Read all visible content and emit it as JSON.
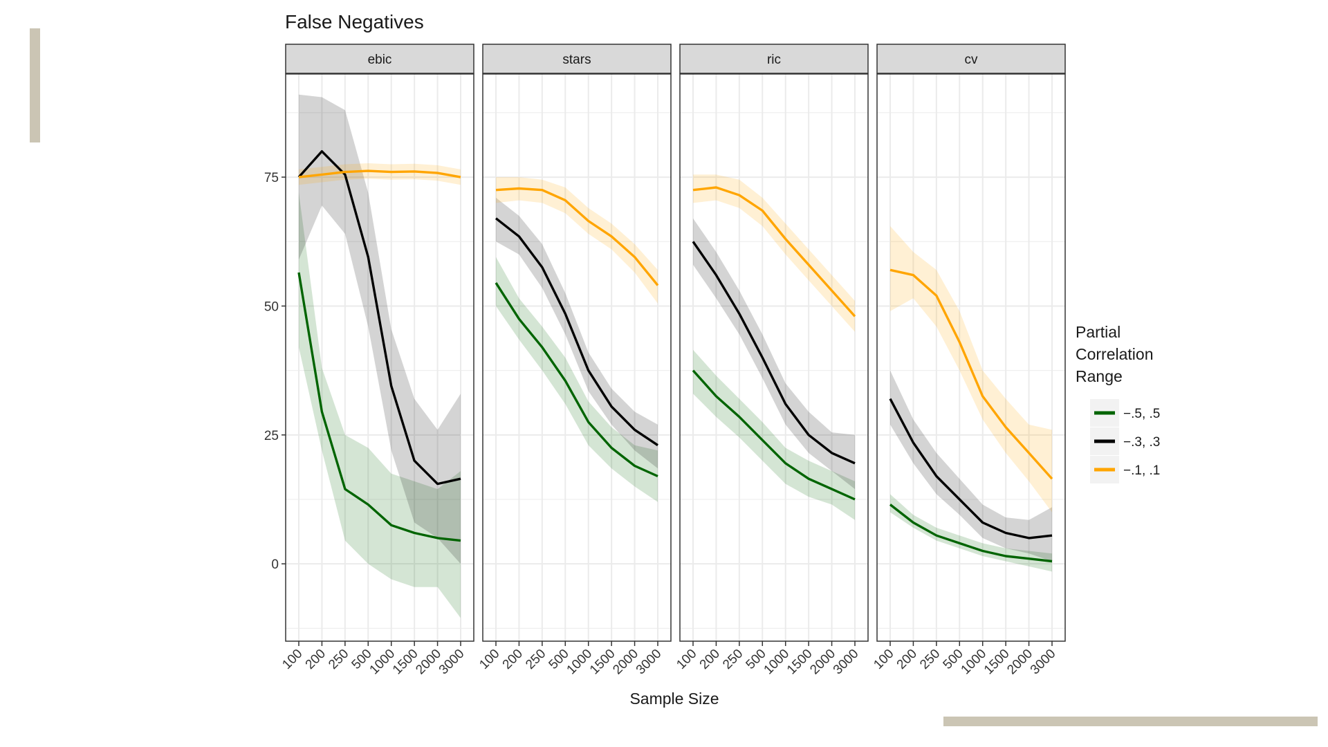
{
  "colors": {
    "deco": "#cbc5b4",
    "grid": "#ebebeb",
    "strip_bg": "#d9d9d9",
    "legend_key_bg": "#f2f2f2"
  },
  "chart_data": {
    "type": "line",
    "title": "False Negatives",
    "xlabel": "Sample Size",
    "ylabel": "",
    "ylim": [
      -15,
      95
    ],
    "y_ticks": [
      0,
      25,
      50,
      75
    ],
    "categories": [
      "100",
      "200",
      "250",
      "500",
      "1000",
      "1500",
      "2000",
      "3000"
    ],
    "legend": {
      "title_lines": [
        "Partial",
        "Correlation",
        "Range"
      ],
      "position": "right"
    },
    "panels": [
      {
        "name": "ebic",
        "series": [
          {
            "name": "−.5, .5",
            "color": "#006400",
            "values": [
              56.5,
              29.5,
              14.5,
              11.5,
              7.5,
              6,
              5,
              4.5
            ],
            "lower": [
              42,
              22,
              4.5,
              0,
              -3,
              -4.5,
              -4.5,
              -10.5
            ],
            "upper": [
              72,
              38,
              25,
              22.5,
              17.5,
              16,
              14.5,
              18
            ]
          },
          {
            "name": "−.3, .3",
            "color": "#000000",
            "values": [
              75,
              80,
              75.5,
              59.5,
              34.5,
              20,
              15.5,
              16.5
            ],
            "lower": [
              59,
              69.5,
              64,
              46,
              22,
              8,
              5,
              0
            ],
            "upper": [
              91,
              90.5,
              88,
              72,
              45.5,
              32,
              26,
              33
            ]
          },
          {
            "name": "−.1, .1",
            "color": "#ffa500",
            "values": [
              75,
              75.5,
              76,
              76.2,
              76,
              76.1,
              75.8,
              75
            ],
            "lower": [
              73.5,
              74,
              74.5,
              74.7,
              74.5,
              74.6,
              74.3,
              73.5
            ],
            "upper": [
              76.5,
              77,
              77.5,
              77.7,
              77.5,
              77.6,
              77.3,
              76.5
            ]
          }
        ]
      },
      {
        "name": "stars",
        "series": [
          {
            "name": "−.5, .5",
            "color": "#006400",
            "values": [
              54.5,
              47.5,
              42,
              35.5,
              27.5,
              22.5,
              19,
              17
            ],
            "lower": [
              50,
              43.5,
              37.5,
              31,
              23,
              18.5,
              15,
              12
            ],
            "upper": [
              59.5,
              51.5,
              46,
              40,
              31.5,
              26.5,
              23,
              22
            ]
          },
          {
            "name": "−.3, .3",
            "color": "#000000",
            "values": [
              67,
              63.5,
              57.5,
              48.5,
              37.5,
              30.5,
              26,
              23
            ],
            "lower": [
              62.5,
              60,
              53.5,
              44.5,
              33.5,
              27,
              22,
              18.5
            ],
            "upper": [
              71,
              67.5,
              62,
              52.5,
              41,
              34,
              29.5,
              27
            ]
          },
          {
            "name": "−.1, .1",
            "color": "#ffa500",
            "values": [
              72.5,
              72.8,
              72.5,
              70.5,
              66.5,
              63.5,
              59.5,
              54
            ],
            "lower": [
              70,
              70.5,
              70,
              68,
              64,
              61,
              56.5,
              50.5
            ],
            "upper": [
              75,
              75,
              74.5,
              73,
              69,
              66,
              62,
              57
            ]
          }
        ]
      },
      {
        "name": "ric",
        "series": [
          {
            "name": "−.5, .5",
            "color": "#006400",
            "values": [
              37.5,
              32.5,
              28.5,
              24,
              19.5,
              16.5,
              14.5,
              12.5
            ],
            "lower": [
              33,
              28.5,
              24.5,
              20,
              15.5,
              13,
              11.5,
              8.5
            ],
            "upper": [
              41.5,
              36.5,
              32,
              27.5,
              22.5,
              20,
              18,
              16
            ]
          },
          {
            "name": "−.3, .3",
            "color": "#000000",
            "values": [
              62.5,
              56,
              48.5,
              40,
              31,
              25,
              21.5,
              19.5
            ],
            "lower": [
              58,
              51.5,
              44.5,
              36,
              27,
              21.5,
              18,
              14.5
            ],
            "upper": [
              67,
              60.5,
              53,
              44.5,
              35,
              29.5,
              25.5,
              25
            ]
          },
          {
            "name": "−.1, .1",
            "color": "#ffa500",
            "values": [
              72.5,
              73,
              71.5,
              68.5,
              63,
              58,
              53,
              48
            ],
            "lower": [
              70,
              70.5,
              69,
              65.5,
              60,
              55,
              50,
              45
            ],
            "upper": [
              75.5,
              75.5,
              74.5,
              71,
              66,
              61,
              56,
              51
            ]
          }
        ]
      },
      {
        "name": "cv",
        "series": [
          {
            "name": "−.5, .5",
            "color": "#006400",
            "values": [
              11.5,
              8,
              5.5,
              4,
              2.5,
              1.5,
              1,
              0.5
            ],
            "lower": [
              10,
              7,
              4.5,
              3,
              1.5,
              0.5,
              -0.5,
              -1.5
            ],
            "upper": [
              13.5,
              9.5,
              7,
              5.5,
              4,
              3,
              2.5,
              2
            ]
          },
          {
            "name": "−.3, .3",
            "color": "#000000",
            "values": [
              32,
              23.5,
              17,
              12.5,
              8,
              6,
              5,
              5.5
            ],
            "lower": [
              27,
              19.5,
              13.5,
              9.5,
              5,
              3,
              2,
              0.5
            ],
            "upper": [
              37.5,
              28,
              21.5,
              16.5,
              11.5,
              9,
              8.5,
              11
            ]
          },
          {
            "name": "−.1, .1",
            "color": "#ffa500",
            "values": [
              57,
              56,
              52,
              43,
              32.5,
              26.5,
              21.5,
              16.5
            ],
            "lower": [
              49,
              51.5,
              46,
              37.5,
              28,
              21.5,
              16,
              10
            ],
            "upper": [
              65.5,
              60.5,
              57,
              49,
              37.5,
              32,
              27,
              26
            ]
          }
        ]
      }
    ]
  }
}
